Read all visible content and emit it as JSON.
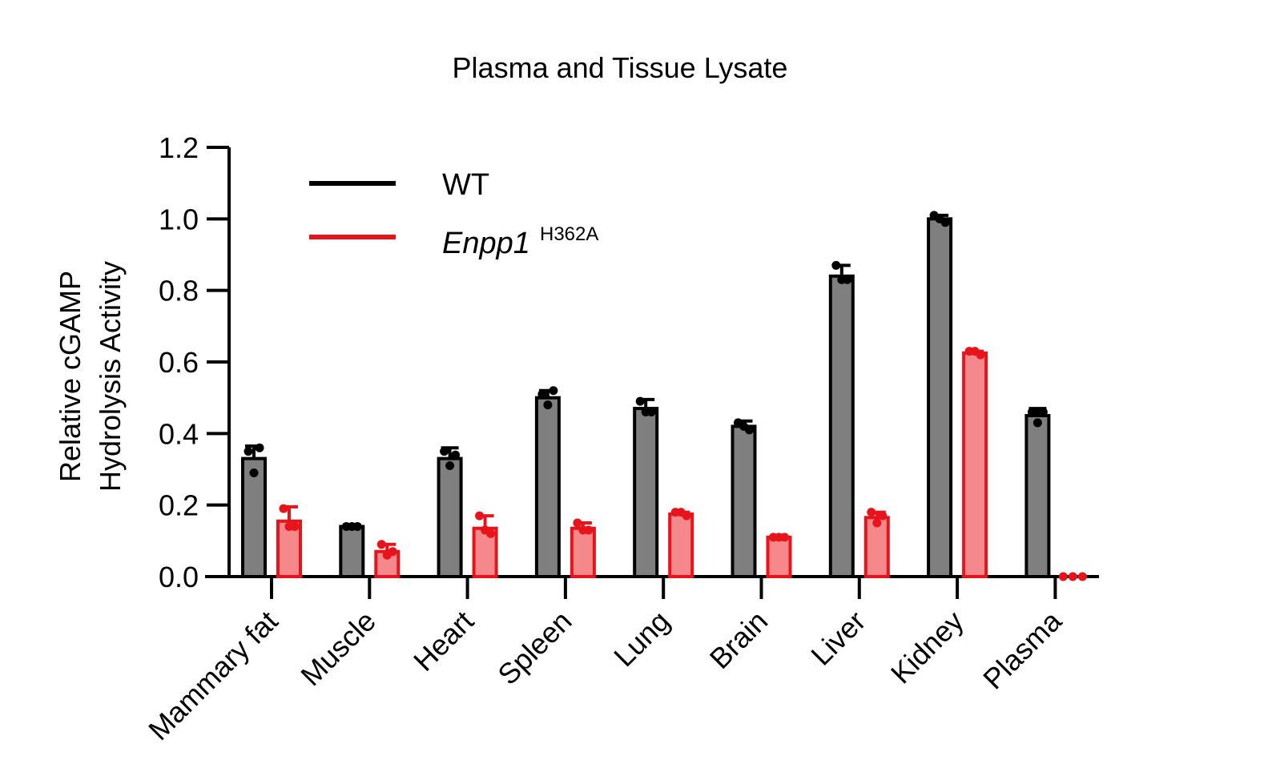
{
  "chart_data": {
    "type": "bar",
    "title": "Plasma and Tissue Lysate",
    "ylabel_lines": [
      "Relative cGAMP",
      "Hydrolysis Activity"
    ],
    "xlabel": "",
    "ylim": [
      0,
      1.2
    ],
    "yticks": [
      "0.0",
      "0.2",
      "0.4",
      "0.6",
      "0.8",
      "1.0",
      "1.2"
    ],
    "categories": [
      "Mammary fat",
      "Muscle",
      "Heart",
      "Spleen",
      "Lung",
      "Brain",
      "Liver",
      "Kidney",
      "Plasma"
    ],
    "series": [
      {
        "name": "WT",
        "color": "#000000",
        "fill": "#7f7f7f",
        "values": [
          0.33,
          0.14,
          0.33,
          0.5,
          0.47,
          0.42,
          0.84,
          1.0,
          0.45
        ],
        "errors": [
          0.035,
          0.005,
          0.03,
          0.02,
          0.025,
          0.015,
          0.03,
          0.01,
          0.02
        ],
        "points": [
          [
            0.35,
            0.36,
            0.29
          ],
          [
            0.14,
            0.14,
            0.14
          ],
          [
            0.35,
            0.34,
            0.31
          ],
          [
            0.51,
            0.52,
            0.48
          ],
          [
            0.49,
            0.46,
            0.46
          ],
          [
            0.43,
            0.41,
            0.42
          ],
          [
            0.87,
            0.83,
            0.83
          ],
          [
            1.01,
            0.99,
            1.0
          ],
          [
            0.46,
            0.46,
            0.43
          ]
        ]
      },
      {
        "name": "Enpp1",
        "name_sup": "H362A",
        "color": "#e8141b",
        "fill": "#f4888b",
        "values": [
          0.155,
          0.07,
          0.135,
          0.135,
          0.175,
          0.11,
          0.165,
          0.625,
          0.0
        ],
        "errors": [
          0.04,
          0.02,
          0.035,
          0.015,
          0.005,
          0.005,
          0.015,
          0.005,
          0.0
        ],
        "points": [
          [
            0.19,
            0.14,
            0.14
          ],
          [
            0.09,
            0.07,
            0.06
          ],
          [
            0.17,
            0.12,
            0.13
          ],
          [
            0.15,
            0.13,
            0.13
          ],
          [
            0.18,
            0.17,
            0.18
          ],
          [
            0.11,
            0.11,
            0.11
          ],
          [
            0.18,
            0.17,
            0.15
          ],
          [
            0.63,
            0.62,
            0.63
          ],
          [
            0.0,
            0.0,
            0.0
          ]
        ]
      }
    ],
    "legend_position": "top-left",
    "grid": false
  }
}
